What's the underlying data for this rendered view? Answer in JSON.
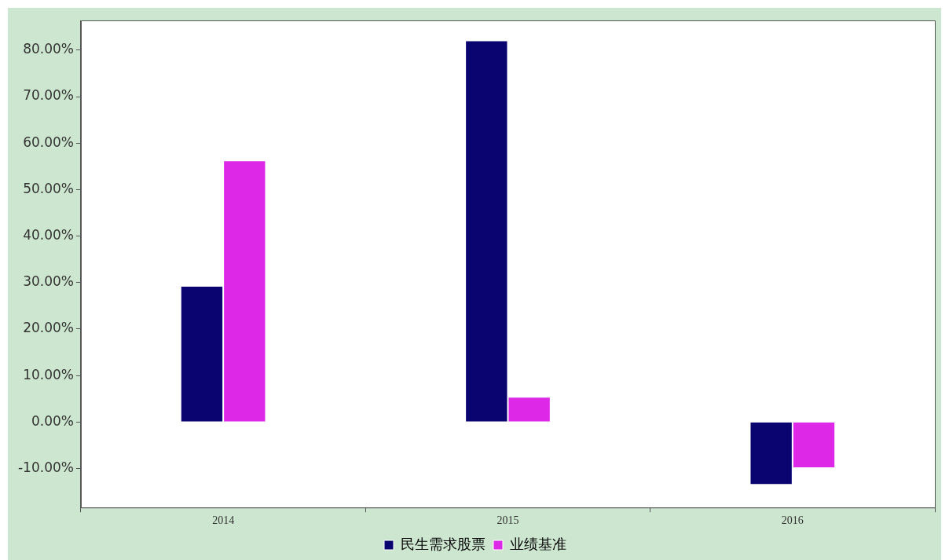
{
  "chart_data": {
    "type": "bar",
    "categories": [
      "2014",
      "2015",
      "2016"
    ],
    "series": [
      {
        "name": "民生需求股票",
        "color": "#0a0470",
        "values": [
          29.3,
          82.1,
          -13.5
        ]
      },
      {
        "name": "业绩基准",
        "color": "#dd28e8",
        "values": [
          56.3,
          5.4,
          -9.9
        ]
      }
    ],
    "ylim": [
      -18.4,
      86.4
    ],
    "yticks": [
      {
        "value": -10,
        "label": "-10.00%"
      },
      {
        "value": 0,
        "label": "0.00%"
      },
      {
        "value": 10,
        "label": "10.00%"
      },
      {
        "value": 20,
        "label": "20.00%"
      },
      {
        "value": 30,
        "label": "30.00%"
      },
      {
        "value": 40,
        "label": "40.00%"
      },
      {
        "value": 50,
        "label": "50.00%"
      },
      {
        "value": 60,
        "label": "60.00%"
      },
      {
        "value": 70,
        "label": "70.00%"
      },
      {
        "value": 80,
        "label": "80.00%"
      }
    ],
    "legend": "bottom"
  }
}
